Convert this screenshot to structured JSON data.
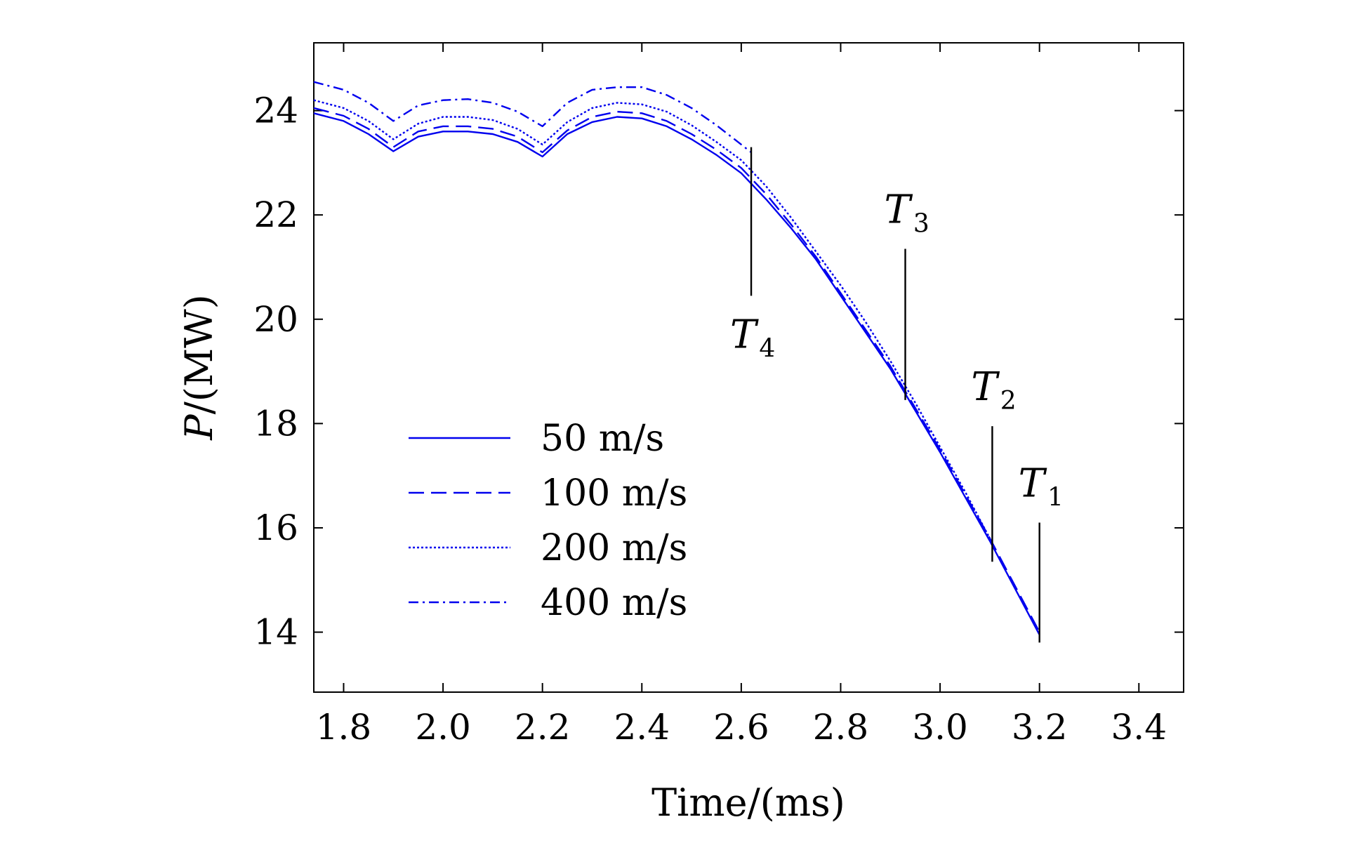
{
  "chart_data": {
    "type": "line",
    "title": "",
    "xlabel": "Time/(ms)",
    "ylabel_main": "P",
    "ylabel_unit": "/(MW)",
    "xlim": [
      1.74,
      3.49
    ],
    "ylim": [
      12.85,
      25.3
    ],
    "xticks": [
      1.8,
      2.0,
      2.2,
      2.4,
      2.6,
      2.8,
      3.0,
      3.2,
      3.4
    ],
    "xtick_labels": [
      "1.8",
      "2.0",
      "2.2",
      "2.4",
      "2.6",
      "2.8",
      "3.0",
      "3.2",
      "3.4"
    ],
    "yticks": [
      14,
      16,
      18,
      20,
      22,
      24
    ],
    "ytick_labels": [
      "14",
      "16",
      "18",
      "20",
      "22",
      "24"
    ],
    "grid": false,
    "legend_position": "lower-left",
    "colors": {
      "series": "#0000ee",
      "axes": "#000000",
      "background": "#ffffff"
    },
    "series": [
      {
        "name": "50 m/s",
        "style": "solid",
        "x": [
          1.74,
          1.8,
          1.85,
          1.9,
          1.95,
          2.0,
          2.05,
          2.1,
          2.15,
          2.2,
          2.25,
          2.3,
          2.35,
          2.4,
          2.45,
          2.5,
          2.55,
          2.6,
          2.65,
          2.7,
          2.75,
          2.8,
          2.85,
          2.9,
          2.95,
          3.0,
          3.05,
          3.1,
          3.15,
          3.2
        ],
        "values": [
          23.95,
          23.8,
          23.55,
          23.22,
          23.5,
          23.6,
          23.6,
          23.55,
          23.4,
          23.12,
          23.55,
          23.78,
          23.88,
          23.85,
          23.7,
          23.45,
          23.15,
          22.8,
          22.3,
          21.75,
          21.15,
          20.45,
          19.75,
          19.05,
          18.25,
          17.45,
          16.6,
          15.75,
          14.85,
          13.95
        ]
      },
      {
        "name": "100 m/s",
        "style": "dashed",
        "x": [
          1.74,
          1.8,
          1.85,
          1.9,
          1.95,
          2.0,
          2.05,
          2.1,
          2.15,
          2.2,
          2.25,
          2.3,
          2.35,
          2.4,
          2.45,
          2.5,
          2.55,
          2.6,
          2.65,
          2.7,
          2.75,
          2.8,
          2.85,
          2.9,
          2.95,
          3.0,
          3.05,
          3.1,
          3.15,
          3.2
        ],
        "values": [
          24.05,
          23.9,
          23.65,
          23.3,
          23.6,
          23.7,
          23.7,
          23.65,
          23.5,
          23.2,
          23.62,
          23.88,
          23.98,
          23.95,
          23.8,
          23.55,
          23.25,
          22.9,
          22.4,
          21.82,
          21.2,
          20.5,
          19.8,
          19.1,
          18.3,
          17.5,
          16.65,
          15.8,
          14.9,
          14.0
        ]
      },
      {
        "name": "200 m/s",
        "style": "dotted",
        "x": [
          1.74,
          1.8,
          1.85,
          1.9,
          1.95,
          2.0,
          2.05,
          2.1,
          2.15,
          2.2,
          2.25,
          2.3,
          2.35,
          2.4,
          2.45,
          2.5,
          2.55,
          2.6,
          2.65,
          2.7,
          2.75,
          2.8,
          2.85,
          2.9,
          2.95,
          3.0,
          3.05,
          3.1
        ],
        "values": [
          24.2,
          24.05,
          23.8,
          23.45,
          23.75,
          23.88,
          23.88,
          23.82,
          23.65,
          23.35,
          23.78,
          24.05,
          24.15,
          24.12,
          23.98,
          23.72,
          23.4,
          23.05,
          22.55,
          21.95,
          21.3,
          20.65,
          19.95,
          19.2,
          18.4,
          17.55,
          16.7,
          15.8
        ]
      },
      {
        "name": "400 m/s",
        "style": "dashdot",
        "x": [
          1.74,
          1.8,
          1.85,
          1.9,
          1.95,
          2.0,
          2.05,
          2.1,
          2.15,
          2.2,
          2.25,
          2.3,
          2.35,
          2.4,
          2.45,
          2.5,
          2.55,
          2.6,
          2.62
        ],
        "values": [
          24.55,
          24.4,
          24.15,
          23.8,
          24.1,
          24.2,
          24.22,
          24.15,
          23.98,
          23.7,
          24.15,
          24.4,
          24.45,
          24.45,
          24.3,
          24.05,
          23.72,
          23.35,
          23.2
        ]
      }
    ],
    "annotations": [
      {
        "main": "T",
        "sub": "4",
        "x": 2.62,
        "y_top": 23.3,
        "y_bottom": 20.45,
        "label_y": 19.45,
        "label_side": "below"
      },
      {
        "main": "T",
        "sub": "3",
        "x": 2.93,
        "y_top": 21.35,
        "y_bottom": 18.45,
        "label_y": 21.85,
        "label_side": "above"
      },
      {
        "main": "T",
        "sub": "2",
        "x": 3.105,
        "y_top": 17.95,
        "y_bottom": 15.35,
        "label_y": 18.45,
        "label_side": "above"
      },
      {
        "main": "T",
        "sub": "1",
        "x": 3.2,
        "y_top": 16.1,
        "y_bottom": 13.8,
        "label_y": 16.6,
        "label_side": "above"
      }
    ]
  }
}
